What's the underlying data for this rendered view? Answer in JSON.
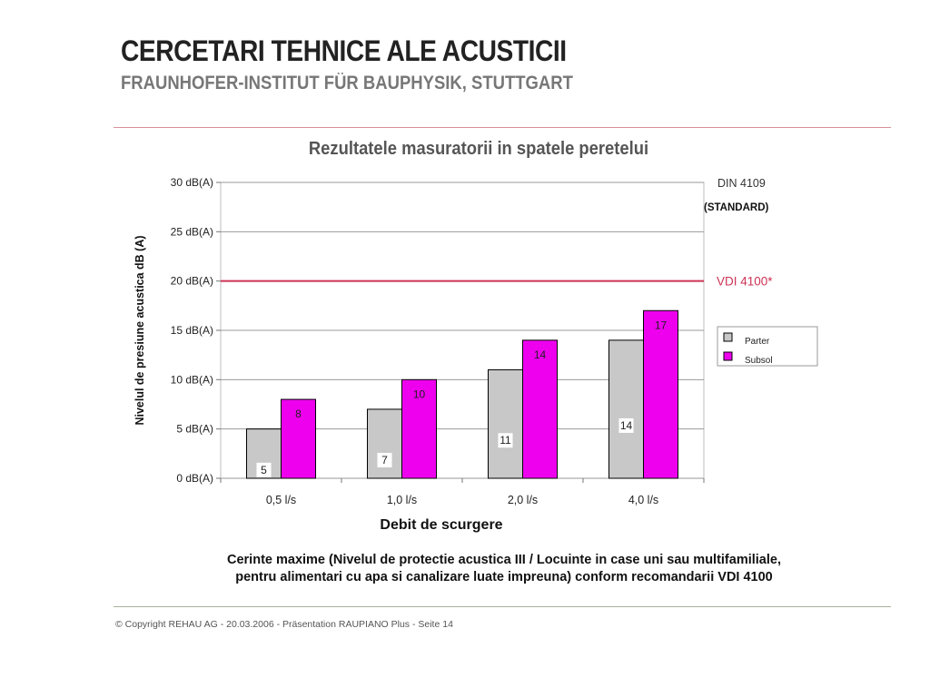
{
  "slide": {
    "title": "CERCETARI TEHNICE ALE ACUSTICII",
    "subtitle": "FRAUNHOFER-INSTITUT FÜR BAUPHYSIK, STUTTGART",
    "note_line1": "Cerinte maxime (Nivelul de protectie acustica III / Locuinte in case uni sau multifamiliale,",
    "note_line2": "pentru alimentari cu apa si canalizare luate impreuna) conform recomandarii VDI 4100",
    "footer": "© Copyright REHAU AG  -  20.03.2006 - Präsentation RAUPIANO Plus - Seite 14"
  },
  "chart_data": {
    "type": "bar",
    "title": "Rezultatele masuratorii in spatele peretelui",
    "xlabel": "Debit de scurgere",
    "ylabel": "Nivelul de presiune acustica dB (A)",
    "categories": [
      "0,5 l/s",
      "1,0 l/s",
      "2,0 l/s",
      "4,0 l/s"
    ],
    "series": [
      {
        "name": "Parter",
        "values": [
          5,
          7,
          11,
          14
        ],
        "color": "#c8c8c8"
      },
      {
        "name": "Subsol",
        "values": [
          8,
          10,
          14,
          17
        ],
        "color": "#ee00ee"
      }
    ],
    "ylim": [
      0,
      30
    ],
    "yticks": [
      0,
      5,
      10,
      15,
      20,
      25,
      30
    ],
    "ytick_labels": [
      "0 dB(A)",
      "5 dB(A)",
      "10 dB(A)",
      "15 dB(A)",
      "20 dB(A)",
      "25 dB(A)",
      "30 dB(A)"
    ],
    "grid": true,
    "legend_position": "right",
    "reference_lines": [
      {
        "value": 30,
        "label": "DIN 4109",
        "sublabel": "(STANDARD)",
        "color": "#333333"
      },
      {
        "value": 20,
        "label": "VDI 4100*",
        "sublabel": "",
        "color": "#cc3355"
      }
    ]
  }
}
